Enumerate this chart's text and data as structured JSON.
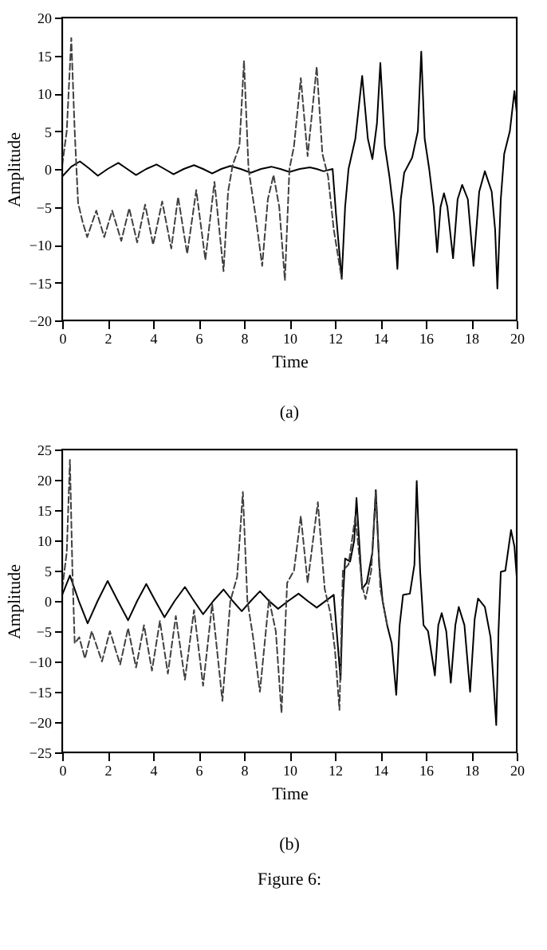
{
  "chart_data": [
    {
      "type": "line",
      "xlabel": "Time",
      "ylabel": "Amplitude",
      "xlim": [
        0,
        20
      ],
      "ylim": [
        -20,
        20
      ],
      "xticks": [
        0,
        2,
        4,
        6,
        8,
        10,
        12,
        14,
        16,
        18,
        20
      ],
      "yticks": [
        -20,
        -15,
        -10,
        -5,
        0,
        5,
        10,
        15,
        20
      ],
      "grid": false,
      "marker": "none",
      "annotations": [
        "(a)"
      ],
      "series": [
        {
          "color": "#000000",
          "line_style": "solid",
          "x": [
            0,
            0.4,
            0.78,
            1.17,
            1.57,
            2.0,
            2.47,
            2.86,
            3.25,
            3.7,
            4.15,
            4.5,
            4.9,
            5.35,
            5.8,
            6.2,
            6.6,
            7.0,
            7.4,
            7.85,
            8.3,
            8.75,
            9.2,
            9.6,
            10.0,
            10.45,
            10.9,
            11.2,
            11.5,
            11.9,
            12.05,
            12.3,
            12.45,
            12.6,
            12.9,
            13.2,
            13.45,
            13.65,
            13.85,
            14.0,
            14.2,
            14.4,
            14.6,
            14.75,
            14.9,
            15.05,
            15.4,
            15.65,
            15.8,
            15.95,
            16.15,
            16.35,
            16.5,
            16.65,
            16.8,
            16.95,
            17.2,
            17.4,
            17.6,
            17.85,
            18.1,
            18.35,
            18.6,
            18.9,
            19.05,
            19.15,
            19.3,
            19.45,
            19.7,
            19.9,
            20
          ],
          "values": [
            -1,
            0.3,
            1.0,
            0.1,
            -0.9,
            0,
            0.8,
            0,
            -0.8,
            0,
            0.6,
            0,
            -0.7,
            0,
            0.5,
            0,
            -0.6,
            0,
            0.4,
            0,
            -0.5,
            0,
            0.3,
            0,
            -0.4,
            0,
            0.2,
            0,
            -0.3,
            0,
            -6,
            -14.5,
            -5,
            0,
            4,
            12.3,
            4,
            1.3,
            6,
            14,
            3,
            -1,
            -6,
            -13.2,
            -4,
            -0.5,
            1.5,
            5,
            15.5,
            4,
            0,
            -5,
            -11,
            -5,
            -3.2,
            -5,
            -11.8,
            -4,
            -2.1,
            -4,
            -12.8,
            -3,
            -0.3,
            -3,
            -8,
            -15.8,
            -4,
            2,
            5,
            10.3,
            7.5
          ]
        },
        {
          "color": "#404040",
          "line_style": "dashed",
          "x": [
            0,
            0.2,
            0.4,
            0.55,
            0.7,
            0.9,
            1.1,
            1.5,
            1.85,
            2.2,
            2.6,
            2.95,
            3.3,
            3.65,
            4.0,
            4.4,
            4.8,
            5.1,
            5.5,
            5.9,
            6.3,
            6.7,
            7.1,
            7.3,
            7.5,
            7.8,
            8.0,
            8.2,
            8.5,
            8.8,
            9.05,
            9.3,
            9.55,
            9.8,
            10.0,
            10.2,
            10.5,
            10.8,
            11.2,
            11.45,
            11.7,
            11.95,
            12.3
          ],
          "values": [
            0.5,
            5,
            17.3,
            5,
            -4.5,
            -7,
            -9,
            -5.5,
            -9,
            -5.5,
            -9.5,
            -5.2,
            -9.7,
            -4.7,
            -10,
            -4.3,
            -10.5,
            -3.7,
            -11.2,
            -2.8,
            -12,
            -1.7,
            -13.5,
            -3,
            0.5,
            3,
            14.3,
            0,
            -6,
            -12.8,
            -4,
            -0.8,
            -5,
            -14.7,
            0,
            3,
            12,
            1.7,
            13.5,
            2,
            -1,
            -8,
            -14.5
          ]
        }
      ]
    },
    {
      "type": "line",
      "xlabel": "Time",
      "ylabel": "Amplitude",
      "xlim": [
        0,
        20
      ],
      "ylim": [
        -25,
        25
      ],
      "xticks": [
        0,
        2,
        4,
        6,
        8,
        10,
        12,
        14,
        16,
        18,
        20
      ],
      "yticks": [
        -25,
        -20,
        -15,
        -10,
        -5,
        0,
        5,
        10,
        15,
        20,
        25
      ],
      "grid": false,
      "marker": "none",
      "annotations": [
        "(b)",
        "Figure 6:"
      ],
      "series": [
        {
          "color": "#000000",
          "line_style": "solid",
          "x": [
            0,
            0.34,
            0.73,
            1.12,
            1.56,
            2.0,
            2.45,
            2.9,
            3.3,
            3.7,
            4.1,
            4.5,
            4.95,
            5.4,
            5.8,
            6.2,
            6.65,
            7.1,
            7.5,
            7.9,
            8.3,
            8.7,
            9.1,
            9.5,
            9.95,
            10.4,
            10.8,
            11.2,
            11.95,
            12.1,
            12.25,
            12.35,
            12.45,
            12.67,
            12.85,
            12.95,
            13.1,
            13.2,
            13.4,
            13.65,
            13.8,
            13.95,
            14.1,
            14.3,
            14.5,
            14.7,
            14.85,
            15.0,
            15.3,
            15.5,
            15.6,
            15.75,
            15.9,
            16.1,
            16.4,
            16.55,
            16.7,
            16.9,
            17.1,
            17.3,
            17.45,
            17.7,
            17.95,
            18.15,
            18.3,
            18.6,
            18.85,
            19.1,
            19.2,
            19.3,
            19.5,
            19.75,
            19.9,
            20
          ],
          "values": [
            1,
            4.2,
            0,
            -3.7,
            0,
            3.3,
            0,
            -3.2,
            0,
            2.8,
            0,
            -2.7,
            0,
            2.3,
            0,
            -2.2,
            0,
            1.9,
            0,
            -1.7,
            0,
            1.6,
            0,
            -1.3,
            0,
            1.2,
            0,
            -1.1,
            1,
            -6,
            -13,
            0,
            7,
            6.5,
            10,
            17,
            8,
            2,
            3,
            8,
            18.3,
            6,
            0,
            -4,
            -7,
            -15.5,
            -4,
            1,
            1.2,
            6,
            19.8,
            5,
            -4,
            -5,
            -12.3,
            -4,
            -2,
            -5,
            -13.5,
            -4,
            -1,
            -4,
            -15,
            -3,
            0.4,
            -1,
            -6,
            -20.5,
            -5,
            4.8,
            5,
            11.7,
            9,
            4
          ]
        },
        {
          "color": "#404040",
          "line_style": "dashed",
          "x": [
            0,
            0.2,
            0.34,
            0.45,
            0.55,
            0.75,
            1.0,
            1.3,
            1.75,
            2.1,
            2.55,
            2.9,
            3.25,
            3.6,
            3.95,
            4.3,
            4.65,
            5.0,
            5.4,
            5.8,
            6.2,
            6.6,
            7.05,
            7.4,
            7.7,
            7.95,
            8.15,
            8.4,
            8.7,
            9.1,
            9.4,
            9.65,
            9.9,
            10.2,
            10.5,
            10.8,
            11.25,
            11.55,
            11.8,
            12.0,
            12.2,
            12.35,
            12.6,
            12.9,
            13.2,
            13.35,
            13.6,
            13.8,
            14.0,
            14.3
          ],
          "values": [
            2,
            8,
            23.3,
            5,
            -7,
            -6,
            -9.5,
            -5,
            -10,
            -5,
            -10.5,
            -4.5,
            -11,
            -4,
            -11.5,
            -3.3,
            -12,
            -2.5,
            -13,
            -1.5,
            -14,
            -0.5,
            -16.5,
            0,
            4,
            18,
            0,
            -6,
            -15,
            0.3,
            -5,
            -18.5,
            3,
            5,
            14,
            3,
            16.3,
            2,
            -2,
            -8,
            -18,
            5,
            6,
            14,
            2.5,
            0.3,
            5,
            18,
            2,
            -4
          ]
        }
      ]
    }
  ]
}
